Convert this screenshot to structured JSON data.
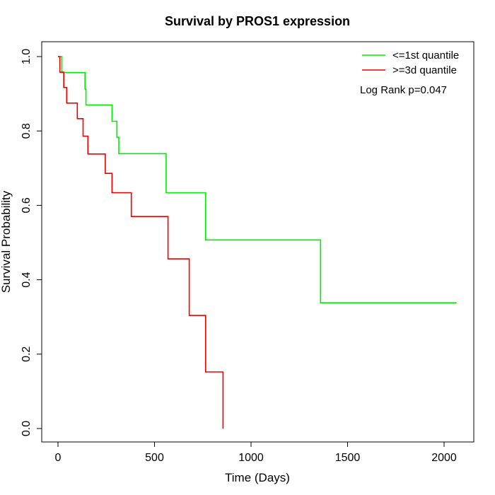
{
  "chart_data": {
    "type": "line",
    "title": "Survival by PROS1 expression",
    "xlabel": "Time (Days)",
    "ylabel": "Survival Probability",
    "xlim": [
      0,
      2070
    ],
    "ylim": [
      0,
      1
    ],
    "x_ticks": [
      0,
      500,
      1000,
      1500,
      2000
    ],
    "y_ticks": [
      0.0,
      0.2,
      0.4,
      0.6,
      0.8,
      1.0
    ],
    "x_tick_labels": [
      "0",
      "500",
      "1000",
      "1500",
      "2000"
    ],
    "y_tick_labels": [
      "0.0",
      "0.2",
      "0.4",
      "0.6",
      "0.8",
      "1.0"
    ],
    "grid": false,
    "legend_position": "top-right",
    "annotation": "Log Rank p=0.047",
    "series": [
      {
        "name": "<=1st quantile",
        "color": "#00ee00",
        "points": [
          [
            0,
            1.0
          ],
          [
            20,
            1.0
          ],
          [
            20,
            0.957
          ],
          [
            140,
            0.957
          ],
          [
            140,
            0.913
          ],
          [
            145,
            0.913
          ],
          [
            145,
            0.87
          ],
          [
            280,
            0.87
          ],
          [
            280,
            0.826
          ],
          [
            305,
            0.826
          ],
          [
            305,
            0.783
          ],
          [
            315,
            0.783
          ],
          [
            315,
            0.739
          ],
          [
            560,
            0.739
          ],
          [
            560,
            0.634
          ],
          [
            765,
            0.634
          ],
          [
            765,
            0.507
          ],
          [
            1360,
            0.507
          ],
          [
            1360,
            0.338
          ],
          [
            2065,
            0.338
          ]
        ]
      },
      {
        "name": ">=3d quantile",
        "color": "#ee0000",
        "points": [
          [
            0,
            1.0
          ],
          [
            10,
            1.0
          ],
          [
            10,
            0.958
          ],
          [
            30,
            0.958
          ],
          [
            30,
            0.917
          ],
          [
            45,
            0.917
          ],
          [
            45,
            0.875
          ],
          [
            100,
            0.875
          ],
          [
            100,
            0.833
          ],
          [
            130,
            0.833
          ],
          [
            130,
            0.786
          ],
          [
            155,
            0.786
          ],
          [
            155,
            0.738
          ],
          [
            245,
            0.738
          ],
          [
            245,
            0.686
          ],
          [
            280,
            0.686
          ],
          [
            280,
            0.634
          ],
          [
            380,
            0.634
          ],
          [
            380,
            0.57
          ],
          [
            570,
            0.57
          ],
          [
            570,
            0.456
          ],
          [
            680,
            0.456
          ],
          [
            680,
            0.304
          ],
          [
            765,
            0.304
          ],
          [
            765,
            0.152
          ],
          [
            855,
            0.152
          ],
          [
            855,
            0.0
          ]
        ]
      }
    ]
  }
}
